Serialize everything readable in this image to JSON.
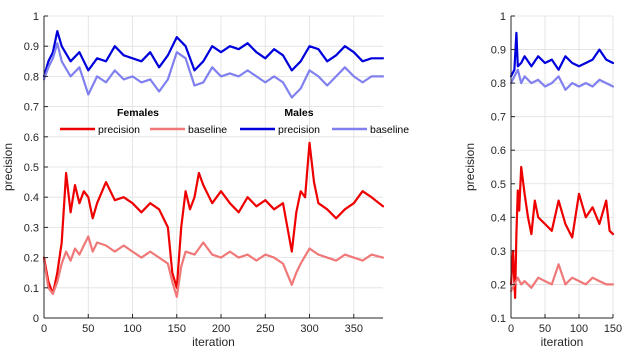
{
  "chart_data": [
    {
      "type": "line",
      "xlabel": "iteration",
      "ylabel": "precision",
      "xlim": [
        0,
        383
      ],
      "ylim": [
        0,
        1
      ],
      "xticks": [
        0,
        50,
        100,
        150,
        200,
        250,
        300,
        350
      ],
      "yticks": [
        0,
        0.1,
        0.2,
        0.3,
        0.4,
        0.5,
        0.6,
        0.7,
        0.8,
        0.9,
        1
      ],
      "grid": true,
      "legend_position": "center",
      "legend_groups": [
        {
          "title": "Females",
          "entries": [
            "precision",
            "baseline"
          ]
        },
        {
          "title": "Males",
          "entries": [
            "precision",
            "baseline"
          ]
        }
      ],
      "series": [
        {
          "name": "Males precision",
          "color": "#0000dd",
          "x": [
            0,
            5,
            10,
            15,
            20,
            30,
            40,
            50,
            60,
            70,
            80,
            90,
            100,
            110,
            120,
            130,
            140,
            150,
            160,
            170,
            180,
            190,
            200,
            210,
            220,
            230,
            240,
            250,
            260,
            270,
            280,
            290,
            300,
            310,
            320,
            330,
            340,
            350,
            360,
            370,
            383
          ],
          "y": [
            0.8,
            0.85,
            0.88,
            0.95,
            0.9,
            0.85,
            0.88,
            0.82,
            0.86,
            0.85,
            0.9,
            0.87,
            0.86,
            0.85,
            0.88,
            0.83,
            0.87,
            0.93,
            0.9,
            0.82,
            0.85,
            0.9,
            0.88,
            0.9,
            0.89,
            0.91,
            0.88,
            0.86,
            0.89,
            0.87,
            0.82,
            0.85,
            0.9,
            0.89,
            0.85,
            0.87,
            0.9,
            0.88,
            0.85,
            0.86,
            0.86
          ]
        },
        {
          "name": "Males baseline",
          "color": "#8080ee",
          "x": [
            0,
            5,
            10,
            15,
            20,
            30,
            40,
            50,
            60,
            70,
            80,
            90,
            100,
            110,
            120,
            130,
            140,
            150,
            160,
            170,
            180,
            190,
            200,
            210,
            220,
            230,
            240,
            250,
            260,
            270,
            280,
            290,
            300,
            310,
            320,
            330,
            340,
            350,
            360,
            370,
            383
          ],
          "y": [
            0.79,
            0.83,
            0.86,
            0.91,
            0.85,
            0.8,
            0.83,
            0.74,
            0.8,
            0.78,
            0.82,
            0.79,
            0.8,
            0.78,
            0.79,
            0.75,
            0.79,
            0.88,
            0.86,
            0.77,
            0.78,
            0.83,
            0.8,
            0.81,
            0.8,
            0.82,
            0.8,
            0.78,
            0.8,
            0.78,
            0.73,
            0.76,
            0.82,
            0.8,
            0.77,
            0.8,
            0.83,
            0.8,
            0.78,
            0.8,
            0.8
          ]
        },
        {
          "name": "Females precision",
          "color": "#ee0000",
          "x": [
            0,
            5,
            10,
            15,
            20,
            25,
            30,
            35,
            40,
            45,
            50,
            55,
            60,
            70,
            80,
            90,
            100,
            110,
            120,
            130,
            140,
            145,
            150,
            155,
            160,
            165,
            170,
            175,
            180,
            190,
            200,
            210,
            220,
            230,
            240,
            250,
            260,
            270,
            280,
            285,
            290,
            295,
            300,
            305,
            310,
            320,
            330,
            340,
            350,
            360,
            370,
            383
          ],
          "y": [
            0.2,
            0.12,
            0.08,
            0.15,
            0.25,
            0.48,
            0.35,
            0.44,
            0.38,
            0.42,
            0.4,
            0.33,
            0.38,
            0.45,
            0.39,
            0.4,
            0.38,
            0.35,
            0.38,
            0.36,
            0.3,
            0.15,
            0.1,
            0.3,
            0.42,
            0.36,
            0.4,
            0.48,
            0.44,
            0.38,
            0.42,
            0.38,
            0.35,
            0.4,
            0.37,
            0.39,
            0.36,
            0.38,
            0.22,
            0.35,
            0.42,
            0.4,
            0.58,
            0.45,
            0.38,
            0.36,
            0.33,
            0.36,
            0.38,
            0.42,
            0.4,
            0.37
          ]
        },
        {
          "name": "Females baseline",
          "color": "#f07878",
          "x": [
            0,
            5,
            10,
            15,
            20,
            25,
            30,
            35,
            40,
            45,
            50,
            55,
            60,
            70,
            80,
            90,
            100,
            110,
            120,
            130,
            140,
            145,
            150,
            155,
            160,
            170,
            180,
            190,
            200,
            210,
            220,
            230,
            240,
            250,
            260,
            270,
            280,
            285,
            290,
            300,
            310,
            320,
            330,
            340,
            350,
            360,
            370,
            383
          ],
          "y": [
            0.19,
            0.1,
            0.08,
            0.12,
            0.18,
            0.22,
            0.19,
            0.23,
            0.21,
            0.24,
            0.27,
            0.22,
            0.25,
            0.24,
            0.22,
            0.24,
            0.22,
            0.2,
            0.22,
            0.2,
            0.18,
            0.12,
            0.07,
            0.17,
            0.22,
            0.21,
            0.25,
            0.21,
            0.2,
            0.22,
            0.2,
            0.21,
            0.19,
            0.21,
            0.2,
            0.18,
            0.11,
            0.15,
            0.18,
            0.23,
            0.21,
            0.2,
            0.19,
            0.21,
            0.2,
            0.19,
            0.21,
            0.2
          ]
        }
      ]
    },
    {
      "type": "line",
      "xlabel": "iteration",
      "ylabel": "precision",
      "xlim": [
        0,
        150
      ],
      "ylim": [
        0.1,
        1
      ],
      "xticks": [
        0,
        50,
        100,
        150
      ],
      "yticks": [
        0.1,
        0.2,
        0.3,
        0.4,
        0.5,
        0.6,
        0.7,
        0.8,
        0.9,
        1
      ],
      "grid": true,
      "series": [
        {
          "name": "Males precision",
          "color": "#0000dd",
          "x": [
            0,
            5,
            8,
            10,
            15,
            20,
            30,
            40,
            50,
            60,
            70,
            80,
            90,
            100,
            110,
            120,
            130,
            140,
            150
          ],
          "y": [
            0.82,
            0.84,
            0.95,
            0.85,
            0.86,
            0.88,
            0.85,
            0.88,
            0.86,
            0.87,
            0.84,
            0.88,
            0.86,
            0.85,
            0.86,
            0.87,
            0.9,
            0.87,
            0.86
          ]
        },
        {
          "name": "Males baseline",
          "color": "#8080ee",
          "x": [
            0,
            5,
            10,
            15,
            20,
            30,
            40,
            50,
            60,
            70,
            80,
            90,
            100,
            110,
            120,
            130,
            140,
            150
          ],
          "y": [
            0.8,
            0.82,
            0.84,
            0.8,
            0.82,
            0.8,
            0.81,
            0.79,
            0.8,
            0.82,
            0.78,
            0.8,
            0.79,
            0.8,
            0.79,
            0.81,
            0.8,
            0.79
          ]
        },
        {
          "name": "Females precision",
          "color": "#ee0000",
          "x": [
            0,
            3,
            6,
            8,
            10,
            12,
            15,
            20,
            25,
            30,
            35,
            40,
            50,
            60,
            70,
            80,
            90,
            100,
            110,
            120,
            130,
            140,
            145,
            150
          ],
          "y": [
            0.2,
            0.3,
            0.16,
            0.35,
            0.48,
            0.42,
            0.55,
            0.47,
            0.4,
            0.35,
            0.45,
            0.4,
            0.38,
            0.36,
            0.45,
            0.38,
            0.34,
            0.47,
            0.4,
            0.43,
            0.38,
            0.45,
            0.36,
            0.35
          ]
        },
        {
          "name": "Females baseline",
          "color": "#f07878",
          "x": [
            0,
            5,
            10,
            15,
            20,
            30,
            40,
            50,
            60,
            70,
            80,
            90,
            100,
            110,
            120,
            130,
            140,
            150
          ],
          "y": [
            0.18,
            0.2,
            0.22,
            0.2,
            0.21,
            0.19,
            0.22,
            0.21,
            0.2,
            0.26,
            0.2,
            0.22,
            0.21,
            0.2,
            0.22,
            0.21,
            0.2,
            0.2
          ]
        }
      ]
    }
  ]
}
